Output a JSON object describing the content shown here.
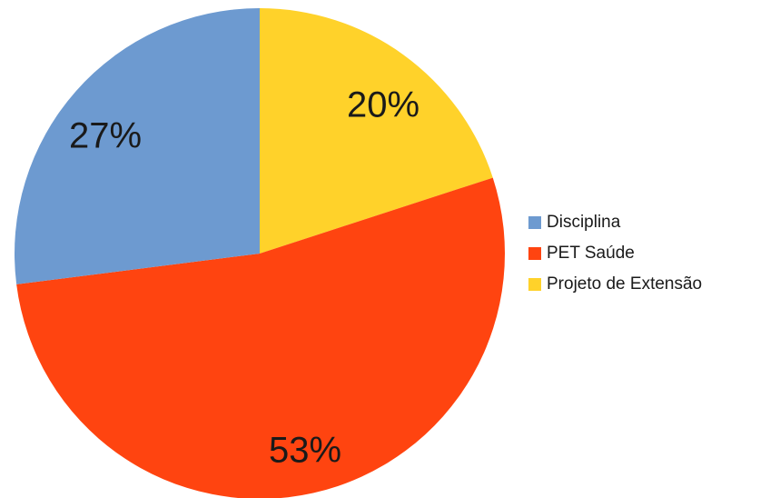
{
  "chart_data": {
    "type": "pie",
    "title": "",
    "slices": [
      {
        "name": "Disciplina",
        "value": 27,
        "label": "27%",
        "color": "#6d9ad0"
      },
      {
        "name": "PET Saúde",
        "value": 53,
        "label": "53%",
        "color": "#ff4410"
      },
      {
        "name": "Projeto de Extensão",
        "value": 20,
        "label": "20%",
        "color": "#ffd22a"
      }
    ],
    "legend_position": "right"
  }
}
